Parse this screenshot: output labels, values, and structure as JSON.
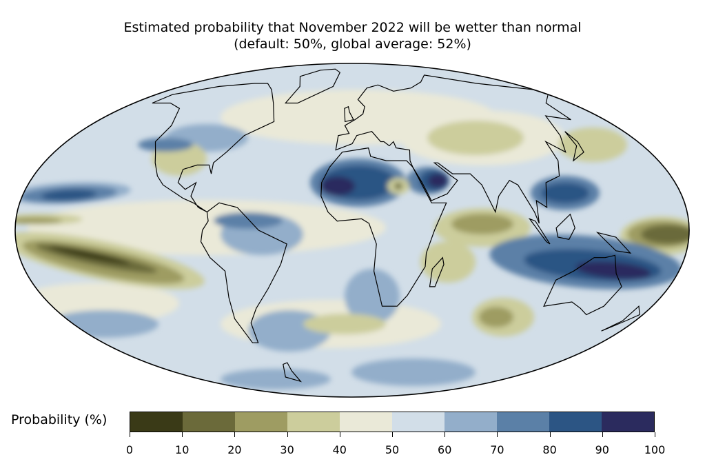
{
  "title": {
    "line1": "Estimated probability that November 2022 will be wetter than normal",
    "line2": "(default: 50%, global average: 52%)"
  },
  "colorbar": {
    "label": "Probability (%)",
    "ticks": [
      "0",
      "10",
      "20",
      "30",
      "40",
      "50",
      "60",
      "70",
      "80",
      "90",
      "100"
    ],
    "colors": [
      "#3a3a17",
      "#6b6a3a",
      "#9e9c62",
      "#cccd9c",
      "#eae9d8",
      "#d2dee8",
      "#93aeca",
      "#5b80a7",
      "#2c5584",
      "#2b2b5e"
    ]
  },
  "map": {
    "projection": "Mollweide",
    "central_longitude": 0
  }
}
